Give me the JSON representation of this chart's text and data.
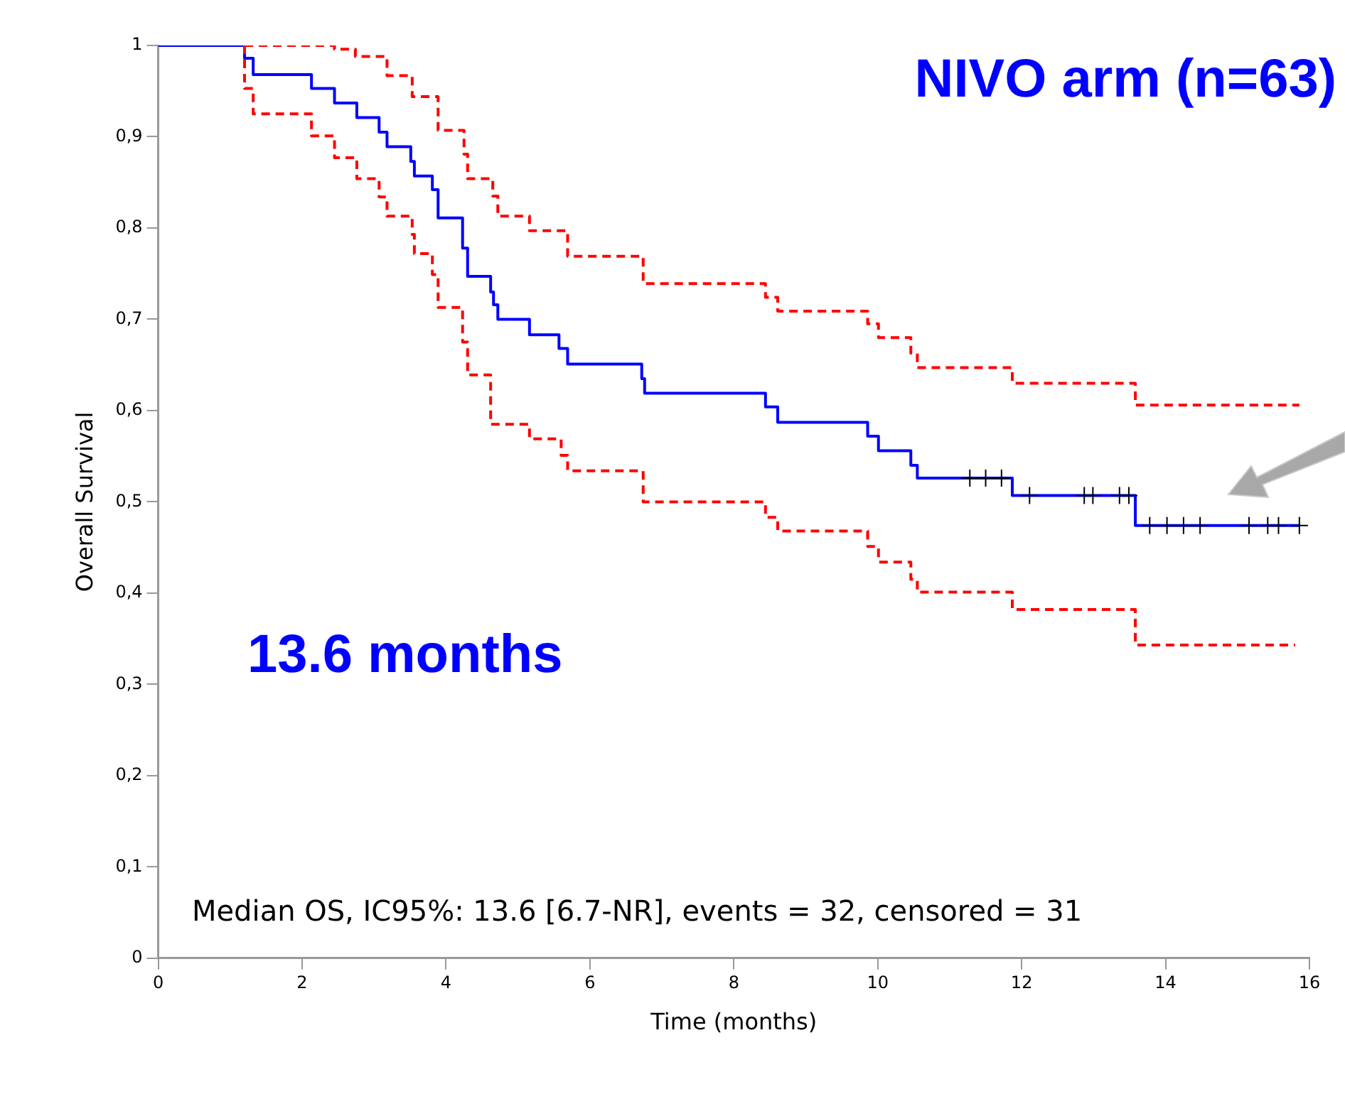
{
  "chart_data": {
    "type": "step",
    "xlabel": "Time (months)",
    "ylabel": "Overall Survival",
    "annotations": [
      "NIVO arm (n=63)",
      "13.6 months",
      "Median OS, IC95%: 13.6 [6.7-NR], events = 32, censored = 31"
    ],
    "xlim": [
      0,
      16
    ],
    "xticks": [
      0,
      2,
      4,
      6,
      8,
      10,
      12,
      14,
      16
    ],
    "ylim": [
      0,
      1
    ],
    "yticks": [
      {
        "value": 0,
        "label": "0"
      },
      {
        "value": 0.1,
        "label": "0,1"
      },
      {
        "value": 0.2,
        "label": "0,2"
      },
      {
        "value": 0.3,
        "label": "0,3"
      },
      {
        "value": 0.4,
        "label": "0,4"
      },
      {
        "value": 0.5,
        "label": "0,5"
      },
      {
        "value": 0.6,
        "label": "0,6"
      },
      {
        "value": 0.7,
        "label": "0,7"
      },
      {
        "value": 0.8,
        "label": "0,8"
      },
      {
        "value": 0.9,
        "label": "0,9"
      },
      {
        "value": 1,
        "label": "1"
      }
    ],
    "grid": false,
    "legend": false,
    "series": [
      {
        "color": "#ff0000",
        "line_style": "dashed",
        "marker": "none",
        "x": [
          1.2,
          1.2,
          2.45,
          2.74,
          3.18,
          3.53,
          3.89,
          4.25,
          4.3,
          4.65,
          4.72,
          5.16,
          5.69,
          6.74,
          8.44,
          8.61,
          9.86,
          10.01,
          10.46,
          10.55,
          11.87,
          13.58,
          15.86
        ],
        "values": [
          1,
          1,
          0.996,
          0.988,
          0.967,
          0.944,
          0.907,
          0.881,
          0.854,
          0.835,
          0.813,
          0.797,
          0.769,
          0.739,
          0.724,
          0.709,
          0.695,
          0.68,
          0.663,
          0.647,
          0.63,
          0.606,
          0.606
        ]
      },
      {
        "color": "#ff0000",
        "line_style": "dashed",
        "marker": "none",
        "x": [
          1.2,
          1.2,
          1.32,
          2.13,
          2.45,
          2.76,
          3.07,
          3.18,
          3.53,
          3.56,
          3.81,
          3.89,
          4.23,
          4.3,
          4.62,
          5.16,
          5.6,
          5.69,
          6.74,
          8.44,
          8.61,
          9.86,
          10.01,
          10.46,
          10.55,
          11.87,
          13.58,
          15.8
        ],
        "values": [
          1,
          0.953,
          0.925,
          0.901,
          0.877,
          0.854,
          0.834,
          0.813,
          0.793,
          0.772,
          0.749,
          0.713,
          0.675,
          0.639,
          0.585,
          0.569,
          0.551,
          0.534,
          0.5,
          0.483,
          0.468,
          0.451,
          0.434,
          0.415,
          0.401,
          0.382,
          0.343,
          0.343
        ]
      },
      {
        "color": "#0000ff",
        "line_style": "solid",
        "marker": "none",
        "x": [
          0,
          1.2,
          1.32,
          2.13,
          2.45,
          2.76,
          3.07,
          3.18,
          3.51,
          3.56,
          3.81,
          3.89,
          4.23,
          4.3,
          4.62,
          4.66,
          4.72,
          5.16,
          5.57,
          5.69,
          6.72,
          6.76,
          8.44,
          8.61,
          9.86,
          10.01,
          10.46,
          10.55,
          11.87,
          13.58,
          15.86
        ],
        "values": [
          1,
          0.986,
          0.968,
          0.953,
          0.937,
          0.921,
          0.905,
          0.889,
          0.873,
          0.857,
          0.842,
          0.811,
          0.778,
          0.747,
          0.73,
          0.716,
          0.7,
          0.683,
          0.668,
          0.651,
          0.635,
          0.619,
          0.604,
          0.587,
          0.572,
          0.556,
          0.54,
          0.526,
          0.507,
          0.474,
          0.474
        ]
      },
      {
        "type": "scatter",
        "color": "#000000",
        "marker": "cross",
        "x": [
          11.28,
          11.5,
          11.72,
          12.11,
          12.87,
          12.99,
          13.36,
          13.49,
          13.78,
          14.02,
          14.25,
          14.48,
          15.16,
          15.42,
          15.57,
          15.86
        ],
        "values": [
          0.526,
          0.526,
          0.526,
          0.507,
          0.507,
          0.507,
          0.507,
          0.507,
          0.474,
          0.474,
          0.474,
          0.474,
          0.474,
          0.474,
          0.474,
          0.474
        ]
      }
    ]
  }
}
